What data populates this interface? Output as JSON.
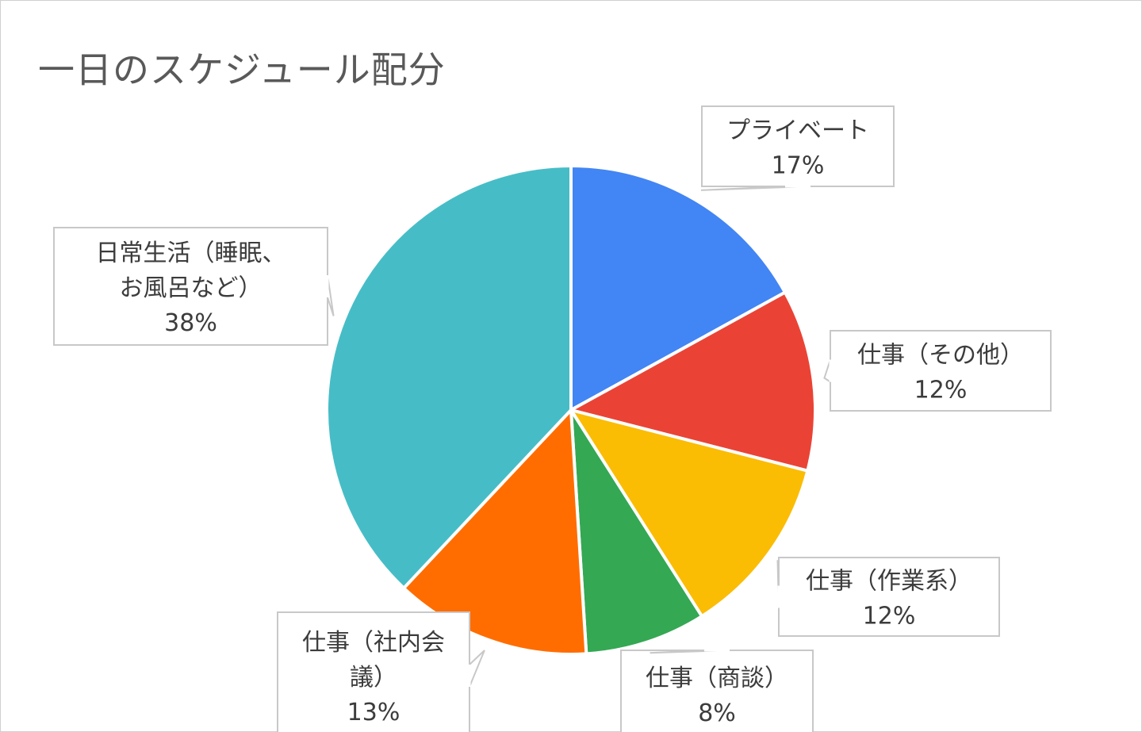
{
  "chart_data": {
    "type": "pie",
    "title": "一日のスケジュール配分",
    "slices": [
      {
        "label": "プライベート",
        "value": 17,
        "value_label": "17%",
        "color": "#4285f4"
      },
      {
        "label": "仕事（その他）",
        "value": 12,
        "value_label": "12%",
        "color": "#ea4335"
      },
      {
        "label": "仕事（作業系）",
        "value": 12,
        "value_label": "12%",
        "color": "#fbbc04"
      },
      {
        "label": "仕事（商談）",
        "value": 8,
        "value_label": "8%",
        "color": "#34a853"
      },
      {
        "label": "仕事（社内会議）",
        "value": 13,
        "value_label": "13%",
        "color": "#ff6d01"
      },
      {
        "label": "日常生活（睡眠、お風呂など）",
        "value": 38,
        "value_label": "38%",
        "color": "#46bdc6"
      }
    ],
    "start_angle": "12 o'clock",
    "direction": "clockwise",
    "legend": "none",
    "data_labels": "callouts"
  }
}
